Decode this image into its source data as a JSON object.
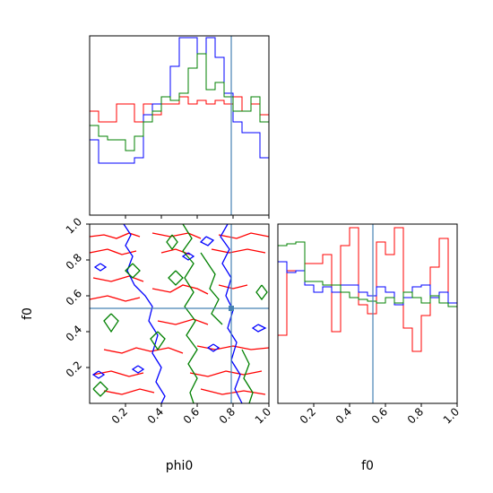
{
  "chart_data": {
    "type": "corner",
    "parameters": [
      "phi0",
      "f0"
    ],
    "truths": {
      "phi0": 0.79,
      "f0": 0.53
    },
    "truth_color": "#4682b4",
    "series_colors": [
      "#ff0000",
      "#0000ff",
      "#008000"
    ],
    "ticks": {
      "phi0": {
        "values": [
          0.2,
          0.4,
          0.6,
          0.8,
          1.0
        ],
        "labels": [
          "0.2",
          "0.4",
          "0.6",
          "0.8",
          "1.0"
        ],
        "range": [
          0.0,
          1.0
        ]
      },
      "f0": {
        "values": [
          0.2,
          0.4,
          0.6,
          0.8,
          1.0
        ],
        "labels": [
          "0.2",
          "0.4",
          "0.6",
          "0.8",
          "1.0"
        ],
        "range": [
          0.0,
          1.0
        ]
      }
    },
    "hist_phi0": {
      "bins": 20,
      "range": [
        0.0,
        1.0
      ],
      "ylim": [
        0,
        10
      ],
      "series": [
        {
          "color": "#ff0000",
          "values": [
            5.8,
            5.2,
            5.2,
            6.2,
            6.2,
            5.2,
            6.2,
            5.6,
            6.2,
            6.2,
            6.6,
            6.2,
            6.4,
            6.2,
            6.4,
            6.2,
            6.6,
            5.8,
            6.2,
            5.6
          ]
        },
        {
          "color": "#0000ff",
          "values": [
            4.2,
            2.9,
            2.9,
            2.9,
            2.9,
            3.2,
            5.6,
            6.2,
            6.6,
            8.3,
            9.9,
            9.9,
            9.0,
            9.9,
            8.8,
            6.8,
            5.2,
            4.6,
            4.6,
            3.2
          ]
        },
        {
          "color": "#008000",
          "values": [
            5.0,
            4.4,
            4.2,
            4.2,
            3.6,
            4.4,
            5.2,
            5.8,
            6.6,
            6.4,
            6.8,
            8.2,
            9.0,
            7.0,
            7.4,
            6.6,
            5.8,
            5.8,
            6.6,
            5.2
          ]
        }
      ]
    },
    "hist_f0": {
      "bins": 20,
      "range": [
        0.0,
        1.0
      ],
      "ylim": [
        0,
        10
      ],
      "series": [
        {
          "color": "#ff0000",
          "values": [
            3.8,
            7.4,
            7.4,
            7.8,
            7.8,
            8.3,
            4.0,
            8.8,
            9.8,
            5.5,
            5.0,
            9.0,
            8.3,
            9.8,
            4.2,
            2.9,
            4.9,
            7.6,
            9.2,
            5.6
          ]
        },
        {
          "color": "#0000ff",
          "values": [
            7.9,
            7.3,
            7.4,
            6.6,
            6.2,
            6.5,
            6.2,
            6.6,
            6.6,
            6.2,
            6.0,
            6.5,
            6.2,
            5.5,
            5.9,
            6.5,
            6.6,
            5.9,
            6.2,
            5.6
          ]
        },
        {
          "color": "#008000",
          "values": [
            8.8,
            8.9,
            9.0,
            6.8,
            6.8,
            6.6,
            6.6,
            6.2,
            5.9,
            5.8,
            5.7,
            5.6,
            5.9,
            5.6,
            6.2,
            5.9,
            5.6,
            6.0,
            5.6,
            5.4
          ]
        }
      ]
    },
    "contours": [
      {
        "color": "#ff0000",
        "lines": [
          [
            [
              0.0,
              0.93
            ],
            [
              0.08,
              0.94
            ],
            [
              0.15,
              0.92
            ],
            [
              0.22,
              0.95
            ],
            [
              0.28,
              0.93
            ]
          ],
          [
            [
              0.35,
              0.95
            ],
            [
              0.45,
              0.93
            ],
            [
              0.55,
              0.95
            ],
            [
              0.62,
              0.92
            ]
          ],
          [
            [
              0.72,
              0.94
            ],
            [
              0.82,
              0.92
            ],
            [
              0.9,
              0.95
            ],
            [
              1.0,
              0.93
            ]
          ],
          [
            [
              0.0,
              0.84
            ],
            [
              0.1,
              0.86
            ],
            [
              0.18,
              0.83
            ],
            [
              0.26,
              0.85
            ]
          ],
          [
            [
              0.4,
              0.84
            ],
            [
              0.48,
              0.86
            ],
            [
              0.56,
              0.83
            ]
          ],
          [
            [
              0.68,
              0.86
            ],
            [
              0.78,
              0.84
            ],
            [
              0.88,
              0.86
            ],
            [
              0.98,
              0.84
            ]
          ],
          [
            [
              0.02,
              0.7
            ],
            [
              0.12,
              0.68
            ],
            [
              0.22,
              0.71
            ],
            [
              0.3,
              0.68
            ]
          ],
          [
            [
              0.35,
              0.64
            ],
            [
              0.45,
              0.62
            ],
            [
              0.52,
              0.66
            ],
            [
              0.6,
              0.64
            ],
            [
              0.66,
              0.61
            ]
          ],
          [
            [
              0.72,
              0.66
            ],
            [
              0.8,
              0.64
            ],
            [
              0.88,
              0.66
            ]
          ],
          [
            [
              0.0,
              0.58
            ],
            [
              0.1,
              0.6
            ],
            [
              0.2,
              0.57
            ],
            [
              0.28,
              0.59
            ]
          ],
          [
            [
              0.38,
              0.46
            ],
            [
              0.48,
              0.44
            ],
            [
              0.58,
              0.47
            ],
            [
              0.66,
              0.44
            ]
          ],
          [
            [
              0.08,
              0.3
            ],
            [
              0.18,
              0.28
            ],
            [
              0.26,
              0.31
            ],
            [
              0.34,
              0.29
            ],
            [
              0.44,
              0.31
            ],
            [
              0.52,
              0.28
            ]
          ],
          [
            [
              0.6,
              0.32
            ],
            [
              0.7,
              0.3
            ],
            [
              0.8,
              0.32
            ],
            [
              0.9,
              0.3
            ],
            [
              1.0,
              0.31
            ]
          ],
          [
            [
              0.02,
              0.16
            ],
            [
              0.12,
              0.18
            ],
            [
              0.22,
              0.15
            ],
            [
              0.3,
              0.17
            ]
          ],
          [
            [
              0.56,
              0.17
            ],
            [
              0.66,
              0.15
            ],
            [
              0.76,
              0.18
            ],
            [
              0.86,
              0.16
            ],
            [
              0.96,
              0.18
            ]
          ],
          [
            [
              0.08,
              0.07
            ],
            [
              0.18,
              0.05
            ],
            [
              0.28,
              0.08
            ],
            [
              0.36,
              0.06
            ]
          ],
          [
            [
              0.62,
              0.08
            ],
            [
              0.74,
              0.05
            ],
            [
              0.86,
              0.07
            ],
            [
              0.98,
              0.05
            ]
          ]
        ]
      },
      {
        "color": "#0000ff",
        "lines": [
          [
            [
              0.19,
              1.0
            ],
            [
              0.23,
              0.94
            ],
            [
              0.2,
              0.88
            ],
            [
              0.24,
              0.82
            ],
            [
              0.21,
              0.74
            ],
            [
              0.25,
              0.66
            ],
            [
              0.31,
              0.6
            ],
            [
              0.35,
              0.54
            ],
            [
              0.33,
              0.46
            ],
            [
              0.38,
              0.38
            ],
            [
              0.35,
              0.28
            ],
            [
              0.4,
              0.2
            ],
            [
              0.37,
              0.12
            ],
            [
              0.42,
              0.04
            ],
            [
              0.4,
              0.0
            ]
          ],
          [
            [
              0.77,
              1.0
            ],
            [
              0.73,
              0.93
            ],
            [
              0.78,
              0.86
            ],
            [
              0.74,
              0.78
            ],
            [
              0.79,
              0.7
            ],
            [
              0.76,
              0.6
            ],
            [
              0.8,
              0.52
            ],
            [
              0.77,
              0.42
            ],
            [
              0.82,
              0.34
            ],
            [
              0.79,
              0.24
            ],
            [
              0.84,
              0.16
            ],
            [
              0.81,
              0.08
            ],
            [
              0.85,
              0.0
            ]
          ],
          [
            [
              0.06,
              0.78
            ],
            [
              0.09,
              0.76
            ],
            [
              0.06,
              0.74
            ],
            [
              0.03,
              0.76
            ],
            [
              0.06,
              0.78
            ]
          ],
          [
            [
              0.65,
              0.93
            ],
            [
              0.69,
              0.91
            ],
            [
              0.66,
              0.88
            ],
            [
              0.62,
              0.9
            ],
            [
              0.65,
              0.93
            ]
          ],
          [
            [
              0.94,
              0.44
            ],
            [
              0.98,
              0.42
            ],
            [
              0.94,
              0.4
            ],
            [
              0.91,
              0.42
            ],
            [
              0.94,
              0.44
            ]
          ],
          [
            [
              0.27,
              0.21
            ],
            [
              0.3,
              0.19
            ],
            [
              0.27,
              0.17
            ],
            [
              0.24,
              0.19
            ],
            [
              0.27,
              0.21
            ]
          ],
          [
            [
              0.05,
              0.18
            ],
            [
              0.08,
              0.16
            ],
            [
              0.05,
              0.14
            ],
            [
              0.02,
              0.16
            ],
            [
              0.05,
              0.18
            ]
          ],
          [
            [
              0.55,
              0.84
            ],
            [
              0.58,
              0.82
            ],
            [
              0.55,
              0.8
            ],
            [
              0.52,
              0.82
            ],
            [
              0.55,
              0.84
            ]
          ],
          [
            [
              0.69,
              0.33
            ],
            [
              0.72,
              0.31
            ],
            [
              0.69,
              0.29
            ],
            [
              0.66,
              0.31
            ],
            [
              0.69,
              0.33
            ]
          ]
        ]
      },
      {
        "color": "#008000",
        "lines": [
          [
            [
              0.52,
              1.0
            ],
            [
              0.57,
              0.92
            ],
            [
              0.52,
              0.85
            ],
            [
              0.58,
              0.78
            ],
            [
              0.53,
              0.7
            ],
            [
              0.58,
              0.62
            ],
            [
              0.53,
              0.54
            ],
            [
              0.59,
              0.46
            ],
            [
              0.54,
              0.38
            ],
            [
              0.6,
              0.3
            ],
            [
              0.55,
              0.22
            ],
            [
              0.6,
              0.14
            ],
            [
              0.56,
              0.06
            ],
            [
              0.58,
              0.0
            ]
          ],
          [
            [
              0.62,
              0.84
            ],
            [
              0.66,
              0.78
            ],
            [
              0.7,
              0.72
            ],
            [
              0.67,
              0.64
            ],
            [
              0.72,
              0.58
            ],
            [
              0.68,
              0.5
            ],
            [
              0.74,
              0.44
            ]
          ],
          [
            [
              0.85,
              0.3
            ],
            [
              0.89,
              0.22
            ],
            [
              0.86,
              0.14
            ],
            [
              0.91,
              0.06
            ],
            [
              0.89,
              0.0
            ]
          ],
          [
            [
              0.02,
              0.08
            ],
            [
              0.06,
              0.12
            ],
            [
              0.1,
              0.08
            ],
            [
              0.06,
              0.04
            ],
            [
              0.02,
              0.08
            ]
          ],
          [
            [
              0.12,
              0.5
            ],
            [
              0.16,
              0.46
            ],
            [
              0.12,
              0.4
            ],
            [
              0.08,
              0.46
            ],
            [
              0.12,
              0.5
            ]
          ],
          [
            [
              0.48,
              0.74
            ],
            [
              0.52,
              0.7
            ],
            [
              0.48,
              0.66
            ],
            [
              0.44,
              0.7
            ],
            [
              0.48,
              0.74
            ]
          ],
          [
            [
              0.38,
              0.4
            ],
            [
              0.42,
              0.36
            ],
            [
              0.38,
              0.3
            ],
            [
              0.34,
              0.36
            ],
            [
              0.38,
              0.4
            ]
          ],
          [
            [
              0.96,
              0.66
            ],
            [
              0.99,
              0.62
            ],
            [
              0.96,
              0.58
            ],
            [
              0.93,
              0.62
            ],
            [
              0.96,
              0.66
            ]
          ],
          [
            [
              0.24,
              0.78
            ],
            [
              0.28,
              0.74
            ],
            [
              0.24,
              0.7
            ],
            [
              0.2,
              0.74
            ],
            [
              0.24,
              0.78
            ]
          ],
          [
            [
              0.46,
              0.94
            ],
            [
              0.49,
              0.9
            ],
            [
              0.46,
              0.86
            ],
            [
              0.43,
              0.9
            ],
            [
              0.46,
              0.94
            ]
          ]
        ]
      }
    ]
  }
}
